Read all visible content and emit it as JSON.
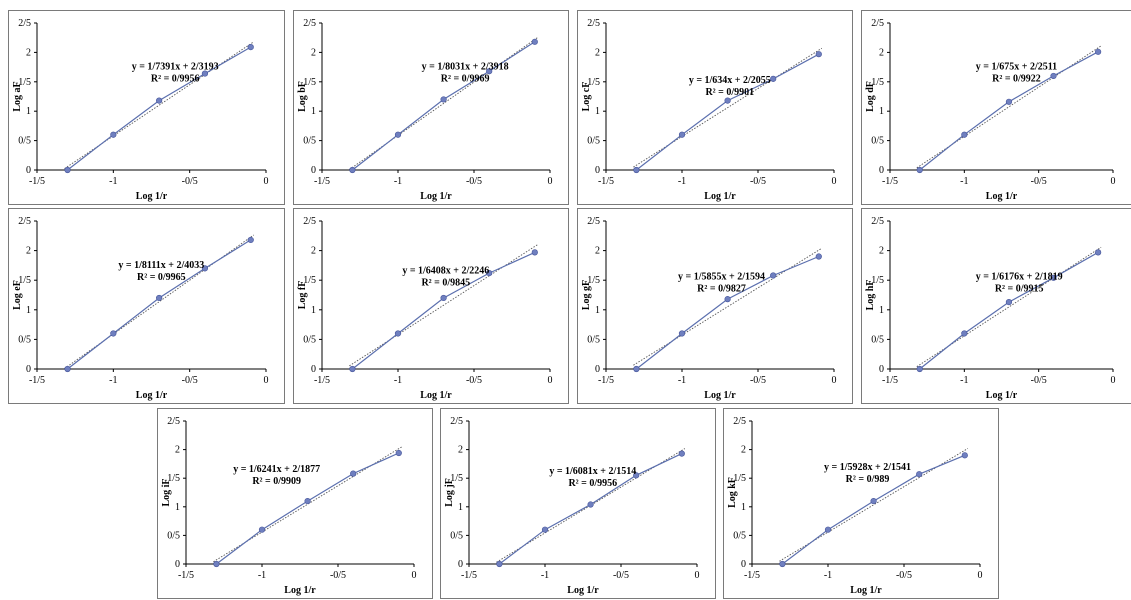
{
  "chart_data": [
    {
      "type": "line",
      "ylabel": "Log aF",
      "xlabel": "Log 1/r",
      "x": [
        -1.3,
        -1.0,
        -0.7,
        -0.4,
        -0.1
      ],
      "y": [
        0.0,
        0.6,
        1.18,
        1.64,
        2.09
      ],
      "trendline": {
        "equation": "y = 1/7391x + 2/3193",
        "r2": "R² = 0/9956"
      }
    },
    {
      "type": "line",
      "ylabel": "Log bF",
      "xlabel": "Log 1/r",
      "x": [
        -1.3,
        -1.0,
        -0.7,
        -0.4,
        -0.1
      ],
      "y": [
        0.0,
        0.6,
        1.2,
        1.68,
        2.18
      ],
      "trendline": {
        "equation": "y = 1/8031x + 2/3918",
        "r2": "R² = 0/9969"
      }
    },
    {
      "type": "line",
      "ylabel": "Log cF",
      "xlabel": "Log 1/r",
      "x": [
        -1.3,
        -1.0,
        -0.7,
        -0.4,
        -0.1
      ],
      "y": [
        0.0,
        0.6,
        1.18,
        1.55,
        1.97
      ],
      "trendline": {
        "equation": "y = 1/634x + 2/2055",
        "r2": "R² = 0/9901"
      }
    },
    {
      "type": "line",
      "ylabel": "Log dF",
      "xlabel": "Log 1/r",
      "x": [
        -1.3,
        -1.0,
        -0.7,
        -0.4,
        -0.1
      ],
      "y": [
        0.0,
        0.6,
        1.16,
        1.6,
        2.01
      ],
      "trendline": {
        "equation": "y = 1/675x + 2/2511",
        "r2": "R² = 0/9922"
      }
    },
    {
      "type": "line",
      "ylabel": "Log eF",
      "xlabel": "Log 1/r",
      "x": [
        -1.3,
        -1.0,
        -0.7,
        -0.4,
        -0.1
      ],
      "y": [
        0.0,
        0.6,
        1.2,
        1.7,
        2.18
      ],
      "trendline": {
        "equation": "y = 1/8111x + 2/4033",
        "r2": "R² = 0/9965"
      }
    },
    {
      "type": "line",
      "ylabel": "Log fF",
      "xlabel": "Log 1/r",
      "x": [
        -1.3,
        -1.0,
        -0.7,
        -0.4,
        -0.1
      ],
      "y": [
        0.0,
        0.6,
        1.2,
        1.62,
        1.97
      ],
      "trendline": {
        "equation": "y = 1/6408x + 2/2246",
        "r2": "R² = 0/9845"
      }
    },
    {
      "type": "line",
      "ylabel": "Log gF",
      "xlabel": "Log 1/r",
      "x": [
        -1.3,
        -1.0,
        -0.7,
        -0.4,
        -0.1
      ],
      "y": [
        0.0,
        0.6,
        1.18,
        1.58,
        1.9
      ],
      "trendline": {
        "equation": "y = 1/5855x + 2/1594",
        "r2": "R² = 0/9827"
      }
    },
    {
      "type": "line",
      "ylabel": "Log hF",
      "xlabel": "Log 1/r",
      "x": [
        -1.3,
        -1.0,
        -0.7,
        -0.4,
        -0.1
      ],
      "y": [
        0.0,
        0.6,
        1.13,
        1.54,
        1.97
      ],
      "trendline": {
        "equation": "y = 1/6176x + 2/1819",
        "r2": "R² = 0/9915"
      }
    },
    {
      "type": "line",
      "ylabel": "Log iF",
      "xlabel": "Log 1/r",
      "x": [
        -1.3,
        -1.0,
        -0.7,
        -0.4,
        -0.1
      ],
      "y": [
        0.0,
        0.6,
        1.1,
        1.58,
        1.94
      ],
      "trendline": {
        "equation": "y = 1/6241x + 2/1877",
        "r2": "R² = 0/9909"
      }
    },
    {
      "type": "line",
      "ylabel": "Log jF",
      "xlabel": "Log 1/r",
      "x": [
        -1.3,
        -1.0,
        -0.7,
        -0.4,
        -0.1
      ],
      "y": [
        0.0,
        0.6,
        1.04,
        1.55,
        1.93
      ],
      "trendline": {
        "equation": "y = 1/6081x + 2/1514",
        "r2": "R² = 0/9956"
      }
    },
    {
      "type": "line",
      "ylabel": "Log kF",
      "xlabel": "Log 1/r",
      "x": [
        -1.3,
        -1.0,
        -0.7,
        -0.4,
        -0.1
      ],
      "y": [
        0.0,
        0.6,
        1.1,
        1.57,
        1.9
      ],
      "trendline": {
        "equation": "y = 1/5928x + 2/1541",
        "r2": "R² = 0/989"
      }
    }
  ],
  "axes": {
    "x_ticks": [
      {
        "v": -1.5,
        "label": "-1/5"
      },
      {
        "v": -1.0,
        "label": "-1"
      },
      {
        "v": -0.5,
        "label": "-0/5"
      },
      {
        "v": 0,
        "label": "0"
      }
    ],
    "y_ticks": [
      {
        "v": 0,
        "label": "0"
      },
      {
        "v": 0.5,
        "label": "0/5"
      },
      {
        "v": 1.0,
        "label": "1"
      },
      {
        "v": 1.5,
        "label": "1/5"
      },
      {
        "v": 2.0,
        "label": "2"
      },
      {
        "v": 2.5,
        "label": "2/5"
      }
    ],
    "xlim": [
      -1.5,
      0
    ],
    "ylim": [
      0,
      2.5
    ]
  },
  "colors": {
    "series_line": "#5b6fae",
    "marker": "#6f7fbf",
    "trendline": "#555555",
    "panel_border": "#7a7a7a"
  }
}
